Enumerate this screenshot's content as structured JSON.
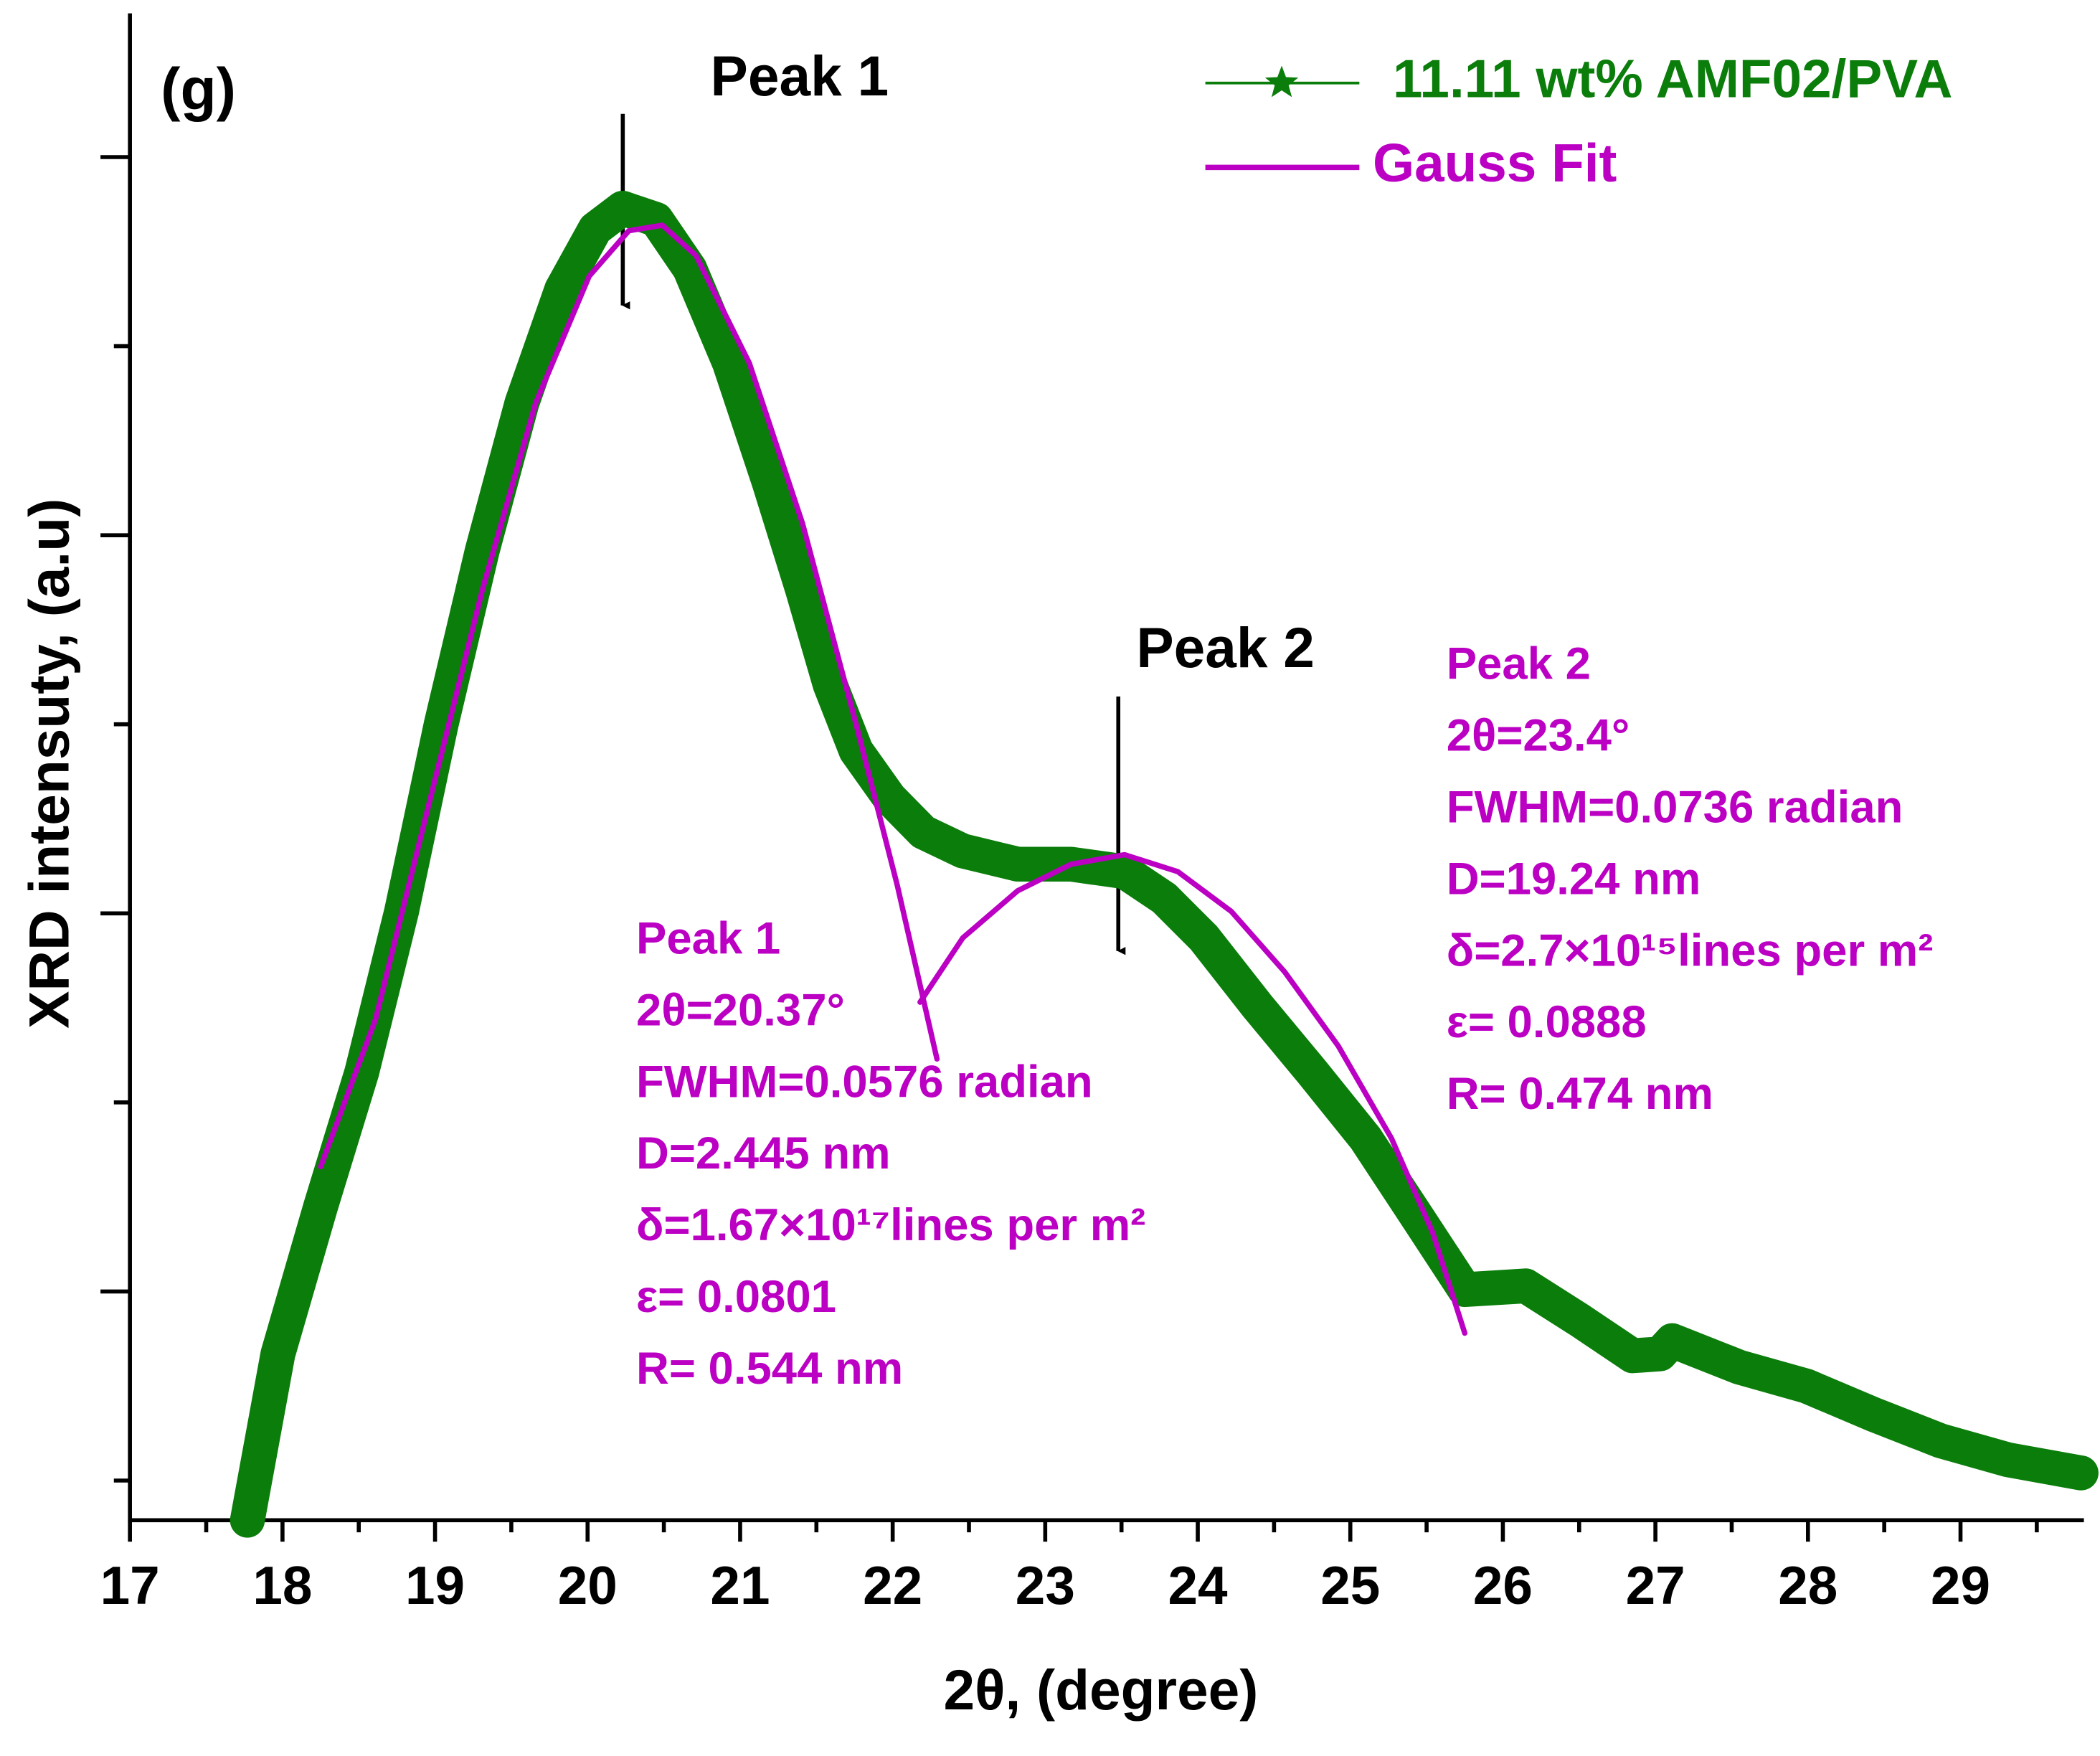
{
  "chart_data": {
    "type": "line",
    "xlabel": "2θ, (degree)",
    "ylabel": "XRD intensuty, (a.u)",
    "xlim": [
      17,
      29.8
    ],
    "xticks": [
      17,
      18,
      19,
      20,
      21,
      22,
      23,
      24,
      25,
      26,
      27,
      28,
      29
    ],
    "xminor_ticks": [
      17.5,
      18.5,
      19.5,
      20.5,
      21.5,
      22.5,
      23.5,
      24.5,
      25.5,
      26.5,
      27.5,
      28.5,
      29.5
    ],
    "ylim": [
      -0.21,
      7.76
    ],
    "yticks": [
      1,
      3,
      5,
      7
    ],
    "yminor_ticks": [
      0,
      2,
      4,
      6
    ],
    "legend": "upper right",
    "series": [
      {
        "name": "11.11 wt% AMF02/PVA",
        "color": "#0b7d0b",
        "marker": "star",
        "x": [
          17.77,
          17.97,
          18.25,
          18.52,
          18.78,
          19.04,
          19.31,
          19.57,
          19.83,
          20.05,
          20.23,
          20.45,
          20.67,
          20.93,
          21.19,
          21.41,
          21.59,
          21.76,
          21.98,
          22.2,
          22.46,
          22.82,
          23.17,
          23.52,
          23.78,
          24.04,
          24.39,
          24.75,
          25.1,
          25.45,
          25.75,
          26.15,
          26.5,
          26.85,
          27.03,
          27.11,
          27.55,
          27.99,
          28.43,
          28.87,
          29.31,
          29.79
        ],
        "values": [
          -0.21,
          0.67,
          1.45,
          2.16,
          3.01,
          4.0,
          4.92,
          5.7,
          6.3,
          6.62,
          6.73,
          6.67,
          6.41,
          5.91,
          5.28,
          4.71,
          4.21,
          3.86,
          3.61,
          3.43,
          3.33,
          3.26,
          3.26,
          3.22,
          3.08,
          2.87,
          2.51,
          2.16,
          1.81,
          1.38,
          1.01,
          1.03,
          0.85,
          0.66,
          0.67,
          0.74,
          0.6,
          0.5,
          0.35,
          0.21,
          0.11,
          0.04
        ]
      },
      {
        "name": "Gauss Fit",
        "color": "#bb00c4",
        "x": [
          18.25,
          18.61,
          18.96,
          19.31,
          19.66,
          20.01,
          20.27,
          20.49,
          20.71,
          21.06,
          21.41,
          21.76,
          22.03,
          22.29,
          null,
          22.18,
          22.46,
          22.82,
          23.17,
          23.52,
          23.87,
          24.22,
          24.57,
          24.92,
          25.27,
          25.54,
          25.75
        ],
        "values": [
          1.66,
          2.44,
          3.58,
          4.71,
          5.7,
          6.37,
          6.61,
          6.64,
          6.48,
          5.91,
          5.06,
          4.0,
          3.15,
          2.23,
          null,
          2.53,
          2.87,
          3.12,
          3.26,
          3.31,
          3.22,
          3.01,
          2.69,
          2.3,
          1.81,
          1.31,
          0.78
        ]
      }
    ],
    "annotations": [
      "(g)",
      "Peak 1",
      "Peak 2"
    ],
    "text_blocks": [
      [
        "Peak 1",
        "2θ=20.37°",
        "FWHM=0.0576 radian",
        "D=2.445 nm",
        "δ=1.67×10¹⁷lines per m²",
        "ε= 0.0801",
        "R= 0.544 nm"
      ],
      [
        "Peak 2",
        "2θ=23.4°",
        "FWHM=0.0736 radian",
        "D=19.24 nm",
        "δ=2.7×10¹⁵lines per m²",
        "ε= 0.0888",
        "R= 0.474 nm"
      ]
    ]
  }
}
